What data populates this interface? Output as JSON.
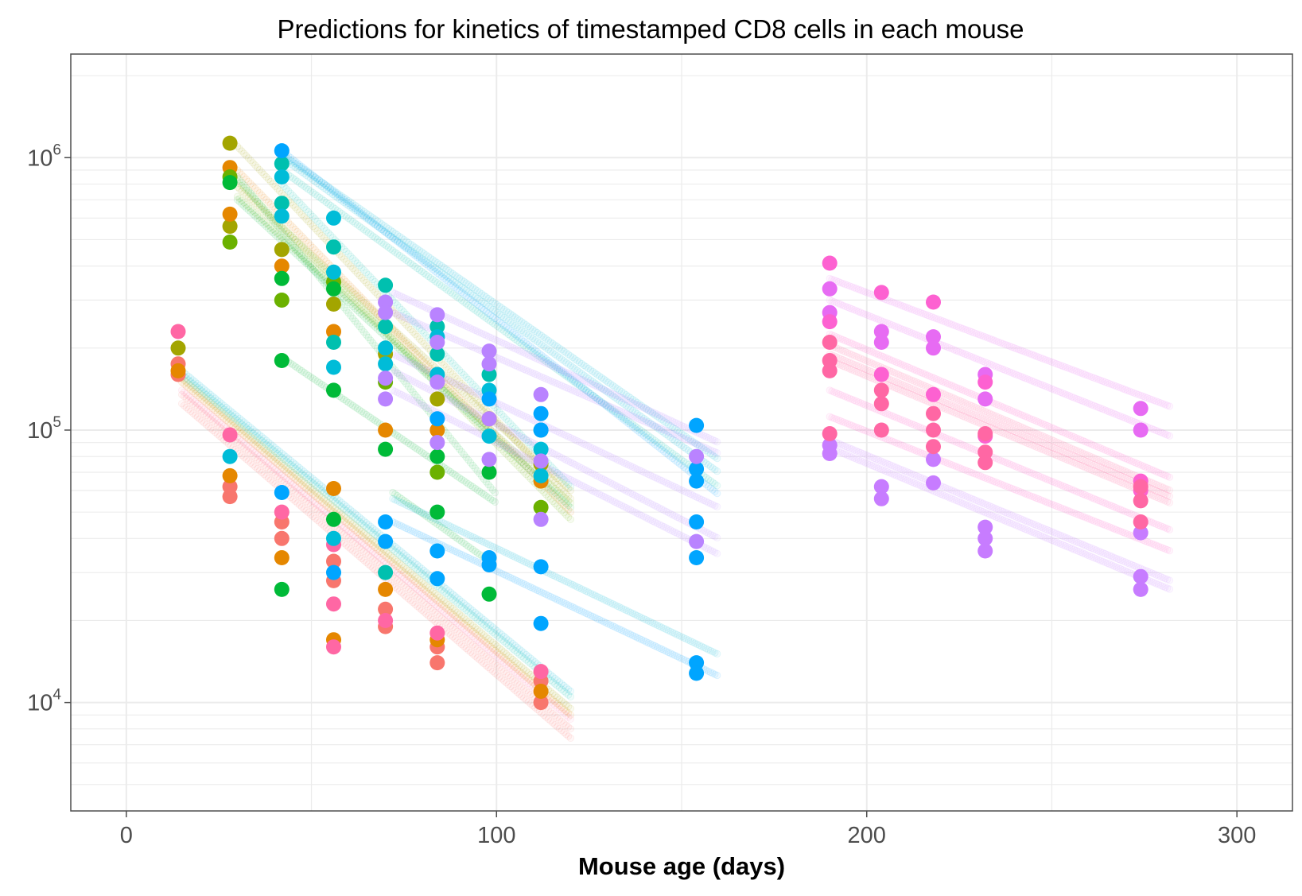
{
  "chart_data": {
    "type": "scatter",
    "title": "Predictions for kinetics of timestamped CD8 cells in each mouse",
    "xlabel": "Mouse age (days)",
    "ylabel": "",
    "xlim": [
      -15,
      315
    ],
    "ylim": [
      4000,
      2400000
    ],
    "y_scale": "log10",
    "x_ticks": [
      {
        "value": 0,
        "label": "0"
      },
      {
        "value": 100,
        "label": "100"
      },
      {
        "value": 200,
        "label": "200"
      },
      {
        "value": 300,
        "label": "300"
      }
    ],
    "y_ticks": [
      {
        "value": 10000,
        "base": "10",
        "exp": "4"
      },
      {
        "value": 100000,
        "base": "10",
        "exp": "5"
      },
      {
        "value": 1000000,
        "base": "10",
        "exp": "6"
      }
    ],
    "grid": true,
    "legend": "none",
    "colors": {
      "orange_red": "#F8766D",
      "orange": "#E58700",
      "olive": "#A3A500",
      "green": "#6BB100",
      "green2": "#00BA38",
      "teal": "#00C0AF",
      "cyan": "#00BCD8",
      "blue": "#00A5FF",
      "lavender": "#B983FF",
      "violet": "#E76BF3",
      "magenta": "#FD61D1",
      "pink": "#FF67A4"
    },
    "observations": [
      {
        "color": "#F8766D",
        "points": [
          [
            14,
            160000
          ],
          [
            14,
            175000
          ],
          [
            28,
            57000
          ],
          [
            28,
            62000
          ],
          [
            42,
            40000
          ],
          [
            42,
            46000
          ],
          [
            56,
            28000
          ],
          [
            56,
            33000
          ],
          [
            70,
            19000
          ],
          [
            70,
            22000
          ],
          [
            84,
            14000
          ],
          [
            84,
            16000
          ],
          [
            112,
            10000
          ],
          [
            112,
            12000
          ]
        ]
      },
      {
        "color": "#E58700",
        "points": [
          [
            14,
            165000
          ],
          [
            28,
            68000
          ],
          [
            42,
            34000
          ],
          [
            56,
            61000
          ],
          [
            56,
            17000
          ],
          [
            70,
            26000
          ],
          [
            84,
            17000
          ],
          [
            112,
            11000
          ]
        ]
      },
      {
        "color": "#FF67A4",
        "points": [
          [
            14,
            230000
          ],
          [
            28,
            96000
          ],
          [
            42,
            50000
          ],
          [
            56,
            38000
          ],
          [
            56,
            23000
          ],
          [
            70,
            20000
          ],
          [
            84,
            18000
          ],
          [
            112,
            13000
          ],
          [
            56,
            16000
          ]
        ]
      },
      {
        "color": "#A3A500",
        "points": [
          [
            14,
            200000
          ],
          [
            28,
            1130000
          ],
          [
            28,
            560000
          ],
          [
            42,
            460000
          ],
          [
            56,
            290000
          ],
          [
            70,
            190000
          ],
          [
            84,
            130000
          ],
          [
            98,
            110000
          ],
          [
            112,
            75000
          ]
        ]
      },
      {
        "color": "#E58700",
        "points": [
          [
            28,
            920000
          ],
          [
            28,
            620000
          ],
          [
            42,
            400000
          ],
          [
            56,
            230000
          ],
          [
            70,
            100000
          ],
          [
            84,
            100000
          ],
          [
            112,
            65000
          ]
        ]
      },
      {
        "color": "#6BB100",
        "points": [
          [
            28,
            850000
          ],
          [
            28,
            490000
          ],
          [
            42,
            300000
          ],
          [
            56,
            350000
          ],
          [
            70,
            150000
          ],
          [
            84,
            70000
          ],
          [
            112,
            52000
          ]
        ]
      },
      {
        "color": "#00BA38",
        "points": [
          [
            28,
            810000
          ],
          [
            42,
            360000
          ],
          [
            42,
            180000
          ],
          [
            56,
            330000
          ],
          [
            56,
            140000
          ],
          [
            70,
            85000
          ],
          [
            84,
            50000
          ],
          [
            84,
            80000
          ],
          [
            98,
            70000
          ],
          [
            98,
            25000
          ],
          [
            56,
            47000
          ],
          [
            42,
            26000
          ]
        ]
      },
      {
        "color": "#00C0AF",
        "points": [
          [
            42,
            950000
          ],
          [
            42,
            680000
          ],
          [
            56,
            470000
          ],
          [
            56,
            210000
          ],
          [
            70,
            340000
          ],
          [
            70,
            240000
          ],
          [
            70,
            30000
          ],
          [
            84,
            240000
          ],
          [
            84,
            190000
          ],
          [
            98,
            160000
          ],
          [
            112,
            100000
          ]
        ]
      },
      {
        "color": "#00BCD8",
        "points": [
          [
            28,
            80000
          ],
          [
            42,
            850000
          ],
          [
            42,
            610000
          ],
          [
            56,
            600000
          ],
          [
            56,
            380000
          ],
          [
            56,
            170000
          ],
          [
            56,
            40000
          ],
          [
            70,
            200000
          ],
          [
            70,
            175000
          ],
          [
            84,
            220000
          ],
          [
            84,
            160000
          ],
          [
            98,
            140000
          ],
          [
            98,
            95000
          ],
          [
            112,
            85000
          ],
          [
            112,
            68000
          ]
        ]
      },
      {
        "color": "#00A5FF",
        "points": [
          [
            42,
            1060000
          ],
          [
            42,
            59000
          ],
          [
            56,
            30000
          ],
          [
            70,
            46000
          ],
          [
            70,
            39000
          ],
          [
            84,
            36000
          ],
          [
            84,
            28500
          ],
          [
            98,
            34000
          ],
          [
            98,
            32000
          ],
          [
            112,
            115000
          ],
          [
            112,
            31500
          ],
          [
            112,
            19500
          ],
          [
            154,
            104000
          ],
          [
            154,
            72000
          ],
          [
            154,
            65000
          ],
          [
            154,
            46000
          ],
          [
            154,
            34000
          ],
          [
            154,
            14000
          ],
          [
            154,
            12800
          ],
          [
            98,
            130000
          ],
          [
            84,
            110000
          ],
          [
            112,
            100000
          ]
        ]
      },
      {
        "color": "#B983FF",
        "points": [
          [
            70,
            295000
          ],
          [
            70,
            270000
          ],
          [
            70,
            155000
          ],
          [
            70,
            130000
          ],
          [
            84,
            265000
          ],
          [
            84,
            210000
          ],
          [
            84,
            150000
          ],
          [
            84,
            90000
          ],
          [
            98,
            195000
          ],
          [
            98,
            175000
          ],
          [
            98,
            110000
          ],
          [
            98,
            78000
          ],
          [
            112,
            135000
          ],
          [
            112,
            77000
          ],
          [
            112,
            47000
          ],
          [
            154,
            80000
          ],
          [
            154,
            39000
          ]
        ]
      },
      {
        "color": "#E76BF3",
        "points": [
          [
            190,
            330000
          ],
          [
            190,
            270000
          ],
          [
            204,
            230000
          ],
          [
            204,
            210000
          ],
          [
            218,
            220000
          ],
          [
            218,
            200000
          ],
          [
            232,
            160000
          ],
          [
            232,
            130000
          ],
          [
            274,
            120000
          ],
          [
            274,
            100000
          ]
        ]
      },
      {
        "color": "#C77CFF",
        "points": [
          [
            190,
            88000
          ],
          [
            190,
            82000
          ],
          [
            204,
            62000
          ],
          [
            204,
            56000
          ],
          [
            218,
            78000
          ],
          [
            218,
            64000
          ],
          [
            232,
            44000
          ],
          [
            232,
            40000
          ],
          [
            232,
            36000
          ],
          [
            274,
            29000
          ],
          [
            274,
            26000
          ],
          [
            274,
            42000
          ]
        ]
      },
      {
        "color": "#FD61D1",
        "points": [
          [
            190,
            410000
          ],
          [
            190,
            250000
          ],
          [
            204,
            320000
          ],
          [
            204,
            160000
          ],
          [
            218,
            295000
          ],
          [
            218,
            135000
          ],
          [
            232,
            150000
          ],
          [
            232,
            95000
          ],
          [
            274,
            65000
          ],
          [
            274,
            60000
          ]
        ]
      },
      {
        "color": "#FF67A4",
        "points": [
          [
            190,
            210000
          ],
          [
            190,
            180000
          ],
          [
            190,
            165000
          ],
          [
            190,
            97000
          ],
          [
            204,
            140000
          ],
          [
            204,
            125000
          ],
          [
            204,
            100000
          ],
          [
            218,
            115000
          ],
          [
            218,
            100000
          ],
          [
            218,
            87000
          ],
          [
            232,
            97000
          ],
          [
            232,
            83000
          ],
          [
            232,
            76000
          ],
          [
            274,
            62000
          ],
          [
            274,
            55000
          ],
          [
            274,
            46000
          ]
        ]
      }
    ],
    "predictions": [
      {
        "color": "#F8766D",
        "x": [
          15,
          120
        ],
        "y": [
          125000,
          7400
        ]
      },
      {
        "color": "#F8766D",
        "x": [
          15,
          120
        ],
        "y": [
          135000,
          8000
        ]
      },
      {
        "color": "#FF67A4",
        "x": [
          15,
          120
        ],
        "y": [
          140000,
          8700
        ]
      },
      {
        "color": "#E58700",
        "x": [
          15,
          120
        ],
        "y": [
          150000,
          9000
        ]
      },
      {
        "color": "#A3A500",
        "x": [
          15,
          120
        ],
        "y": [
          155000,
          9500
        ]
      },
      {
        "color": "#00C0AF",
        "x": [
          15,
          120
        ],
        "y": [
          160000,
          10500
        ]
      },
      {
        "color": "#00BCD8",
        "x": [
          15,
          120
        ],
        "y": [
          165000,
          11000
        ]
      },
      {
        "color": "#A3A500",
        "x": [
          30,
          120
        ],
        "y": [
          1100000,
          56000
        ]
      },
      {
        "color": "#E58700",
        "x": [
          30,
          120
        ],
        "y": [
          900000,
          50000
        ]
      },
      {
        "color": "#6BB100",
        "x": [
          30,
          120
        ],
        "y": [
          820000,
          47000
        ]
      },
      {
        "color": "#A3A500",
        "x": [
          30,
          120
        ],
        "y": [
          780000,
          60000
        ]
      },
      {
        "color": "#6BB100",
        "x": [
          30,
          120
        ],
        "y": [
          720000,
          54000
        ]
      },
      {
        "color": "#00BA38",
        "x": [
          30,
          100
        ],
        "y": [
          850000,
          58000
        ]
      },
      {
        "color": "#00BA38",
        "x": [
          30,
          120
        ],
        "y": [
          700000,
          52000
        ]
      },
      {
        "color": "#00BA38",
        "x": [
          42,
          100
        ],
        "y": [
          185000,
          54000
        ]
      },
      {
        "color": "#00BA38",
        "x": [
          72,
          98
        ],
        "y": [
          59000,
          33000
        ]
      },
      {
        "color": "#00C0AF",
        "x": [
          42,
          120
        ],
        "y": [
          800000,
          62000
        ]
      },
      {
        "color": "#00C0AF",
        "x": [
          42,
          160
        ],
        "y": [
          900000,
          62000
        ]
      },
      {
        "color": "#00BCD8",
        "x": [
          42,
          160
        ],
        "y": [
          1030000,
          78000
        ]
      },
      {
        "color": "#00BCD8",
        "x": [
          42,
          160
        ],
        "y": [
          1000000,
          70000
        ]
      },
      {
        "color": "#00A5FF",
        "x": [
          42,
          160
        ],
        "y": [
          1060000,
          58000
        ]
      },
      {
        "color": "#00BCD8",
        "x": [
          72,
          160
        ],
        "y": [
          56000,
          15000
        ]
      },
      {
        "color": "#00A5FF",
        "x": [
          72,
          160
        ],
        "y": [
          46000,
          12500
        ]
      },
      {
        "color": "#B983FF",
        "x": [
          72,
          160
        ],
        "y": [
          320000,
          90000
        ]
      },
      {
        "color": "#B983FF",
        "x": [
          72,
          160
        ],
        "y": [
          270000,
          82000
        ]
      },
      {
        "color": "#B983FF",
        "x": [
          72,
          160
        ],
        "y": [
          190000,
          52000
        ]
      },
      {
        "color": "#B983FF",
        "x": [
          72,
          160
        ],
        "y": [
          140000,
          35000
        ]
      },
      {
        "color": "#B983FF",
        "x": [
          72,
          160
        ],
        "y": [
          165000,
          40000
        ]
      },
      {
        "color": "#E76BF3",
        "x": [
          190,
          282
        ],
        "y": [
          360000,
          122000
        ]
      },
      {
        "color": "#E76BF3",
        "x": [
          190,
          282
        ],
        "y": [
          300000,
          95000
        ]
      },
      {
        "color": "#FD61D1",
        "x": [
          190,
          282
        ],
        "y": [
          225000,
          67000
        ]
      },
      {
        "color": "#FF67A4",
        "x": [
          190,
          282
        ],
        "y": [
          205000,
          60000
        ]
      },
      {
        "color": "#FF67A4",
        "x": [
          190,
          282
        ],
        "y": [
          190000,
          57000
        ]
      },
      {
        "color": "#FF67A4",
        "x": [
          190,
          282
        ],
        "y": [
          180000,
          54000
        ]
      },
      {
        "color": "#FD61D1",
        "x": [
          190,
          282
        ],
        "y": [
          140000,
          43000
        ]
      },
      {
        "color": "#FD61D1",
        "x": [
          190,
          282
        ],
        "y": [
          112000,
          36000
        ]
      },
      {
        "color": "#C77CFF",
        "x": [
          190,
          282
        ],
        "y": [
          92000,
          28000
        ]
      },
      {
        "color": "#C77CFF",
        "x": [
          190,
          282
        ],
        "y": [
          86000,
          26000
        ]
      }
    ]
  }
}
